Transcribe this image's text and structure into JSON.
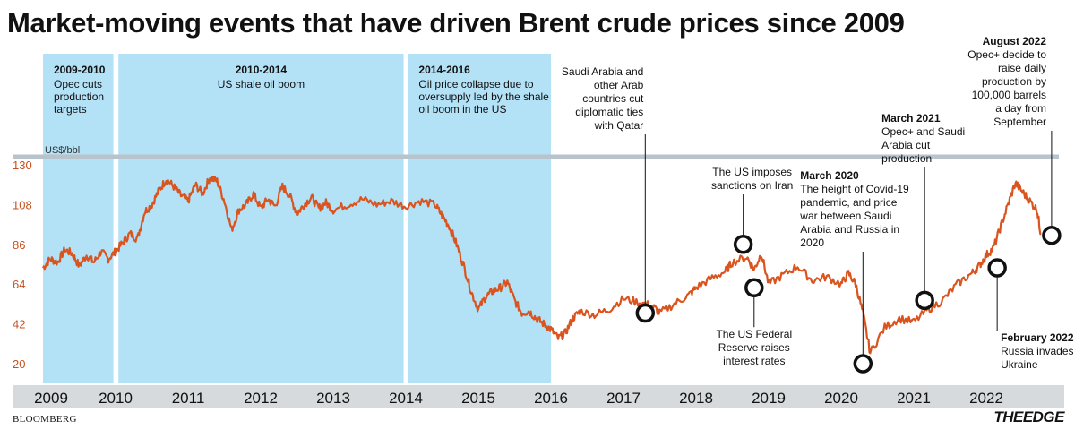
{
  "title": "Market-moving events that have driven Brent crude prices since 2009",
  "source": "BLOOMBERG",
  "brand": "THEEDGE",
  "colors": {
    "line": "#d9541e",
    "band": "#b3e1f6",
    "refline": "#b8c3cc",
    "axis": "#d6dadd",
    "marker": "#111111"
  },
  "chart_data": {
    "type": "line",
    "title": "Market-moving events that have driven Brent crude prices since 2009",
    "ylabel": "US$/bbl",
    "xlabel": "",
    "ylim": [
      10,
      136
    ],
    "xlim": [
      2009.0,
      2023.0
    ],
    "yticks": [
      20,
      42,
      64,
      86,
      108,
      130
    ],
    "xticks": [
      "2009",
      "2010",
      "2011",
      "2012",
      "2013",
      "2014",
      "2015",
      "2016",
      "2017",
      "2018",
      "2019",
      "2020",
      "2021",
      "2022"
    ],
    "series": [
      {
        "name": "Brent crude",
        "x": [
          2009.0,
          2009.1,
          2009.2,
          2009.3,
          2009.4,
          2009.5,
          2009.6,
          2009.7,
          2009.8,
          2009.9,
          2010.0,
          2010.1,
          2010.2,
          2010.3,
          2010.4,
          2010.5,
          2010.6,
          2010.7,
          2010.8,
          2010.9,
          2011.0,
          2011.1,
          2011.2,
          2011.3,
          2011.4,
          2011.5,
          2011.6,
          2011.7,
          2011.8,
          2011.9,
          2012.0,
          2012.1,
          2012.2,
          2012.3,
          2012.4,
          2012.5,
          2012.6,
          2012.7,
          2012.8,
          2012.9,
          2013.0,
          2013.2,
          2013.4,
          2013.6,
          2013.8,
          2014.0,
          2014.2,
          2014.4,
          2014.5,
          2014.6,
          2014.7,
          2014.8,
          2014.9,
          2015.0,
          2015.1,
          2015.2,
          2015.3,
          2015.4,
          2015.5,
          2015.6,
          2015.7,
          2015.8,
          2015.9,
          2016.0,
          2016.1,
          2016.2,
          2016.3,
          2016.4,
          2016.6,
          2016.8,
          2017.0,
          2017.2,
          2017.4,
          2017.5,
          2017.7,
          2017.9,
          2018.0,
          2018.2,
          2018.4,
          2018.5,
          2018.7,
          2018.8,
          2018.9,
          2019.0,
          2019.2,
          2019.4,
          2019.6,
          2019.8,
          2020.0,
          2020.1,
          2020.2,
          2020.3,
          2020.4,
          2020.6,
          2020.8,
          2021.0,
          2021.2,
          2021.4,
          2021.6,
          2021.8,
          2021.9,
          2022.0,
          2022.1,
          2022.2,
          2022.3,
          2022.4,
          2022.5,
          2022.6,
          2022.7,
          2022.75
        ],
        "values": [
          73,
          78,
          76,
          83,
          81,
          74,
          80,
          76,
          82,
          78,
          82,
          87,
          92,
          89,
          104,
          108,
          116,
          122,
          118,
          113,
          110,
          119,
          114,
          123,
          121,
          110,
          94,
          105,
          108,
          114,
          106,
          111,
          107,
          118,
          113,
          103,
          108,
          112,
          106,
          109,
          105,
          108,
          111,
          108,
          110,
          107,
          110,
          108,
          102,
          96,
          86,
          74,
          60,
          50,
          57,
          60,
          62,
          65,
          55,
          48,
          49,
          45,
          42,
          39,
          34,
          37,
          45,
          49,
          47,
          50,
          56,
          54,
          52,
          48,
          53,
          58,
          62,
          67,
          71,
          76,
          79,
          72,
          81,
          64,
          69,
          74,
          66,
          68,
          64,
          70,
          64,
          48,
          26,
          40,
          45,
          43,
          50,
          55,
          64,
          70,
          74,
          80,
          84,
          96,
          108,
          120,
          115,
          110,
          105,
          92
        ]
      }
    ],
    "bands": [
      {
        "start": 2009.0,
        "end": 2009.97,
        "label": "2009-2010",
        "text": [
          "Opec cuts",
          "production",
          "targets"
        ]
      },
      {
        "start": 2010.04,
        "end": 2013.97,
        "label": "2010-2014",
        "text": [
          "US shale oil boom"
        ]
      },
      {
        "start": 2014.03,
        "end": 2016.0,
        "label": "2014-2016",
        "text": [
          "Oil price collapse due to",
          "oversupply led by the shale",
          "oil boom in the US"
        ]
      }
    ],
    "annotations": [
      {
        "x": 2017.3,
        "y": 48,
        "bold": "",
        "text": [
          "Saudi Arabia and",
          "other Arab",
          "countries cut",
          "diplomatic ties",
          "with Qatar"
        ],
        "pos": "above-left"
      },
      {
        "x": 2018.65,
        "y": 86,
        "bold": "",
        "text": [
          "The US imposes",
          "sanctions on Iran"
        ],
        "pos": "above"
      },
      {
        "x": 2018.8,
        "y": 62,
        "bold": "",
        "text": [
          "The US Federal",
          "Reserve raises",
          "interest rates"
        ],
        "pos": "below"
      },
      {
        "x": 2020.3,
        "y": 20,
        "bold": "March 2020",
        "text": [
          "The height of Covid-19",
          "pandemic, and price",
          "war between Saudi",
          "Arabia and Russia in",
          "2020"
        ],
        "pos": "above-left"
      },
      {
        "x": 2021.15,
        "y": 55,
        "bold": "March 2021",
        "text": [
          "Opec+ and Saudi",
          "Arabia cut",
          "production"
        ],
        "pos": "above"
      },
      {
        "x": 2022.15,
        "y": 73,
        "bold": "February 2022",
        "text": [
          "Russia invades",
          "Ukraine"
        ],
        "pos": "below"
      },
      {
        "x": 2022.9,
        "y": 91,
        "bold": "August 2022",
        "text": [
          "Opec+ decide to",
          "raise daily",
          "production by",
          "100,000 barrels",
          "a day from",
          "September"
        ],
        "pos": "top-right"
      }
    ]
  }
}
